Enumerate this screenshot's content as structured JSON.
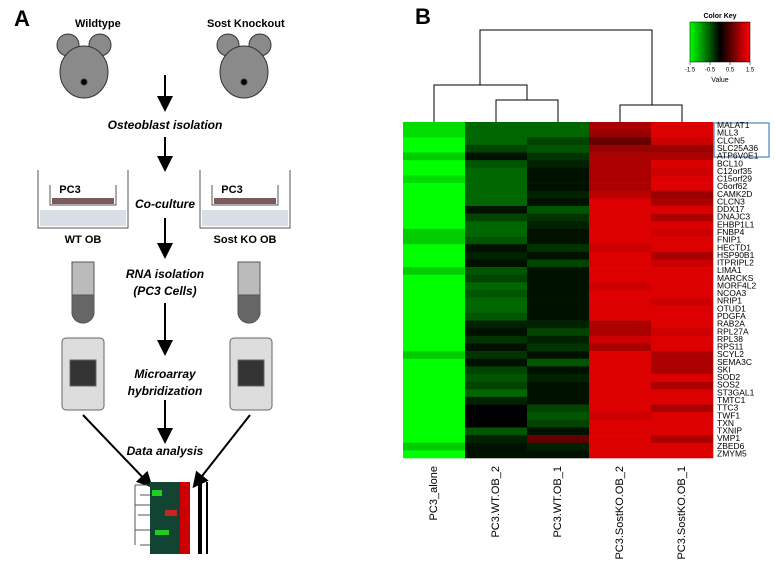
{
  "panel_labels": [
    "A",
    "B"
  ],
  "workflow": {
    "mouse_left": "Wildtype",
    "mouse_right": "Sost Knockout",
    "step1": "Osteoblast isolation",
    "step2": "Co-culture",
    "well_left_top": "PC3",
    "well_right_top": "PC3",
    "well_left_bottom": "WT OB",
    "well_right_bottom": "Sost KO OB",
    "step3_line1": "RNA isolation",
    "step3_line2": "(PC3 Cells)",
    "step4_line1": "Microarray",
    "step4_line2": "hybridization",
    "step5": "Data analysis"
  },
  "chart_data": {
    "type": "heatmap",
    "columns": [
      "PC3_alone",
      "PC3.WT.OB_2",
      "PC3.WT.OB_1",
      "PC3.SostKO.OB_2",
      "PC3.SostKO.OB_1"
    ],
    "rows": [
      "MALAT1",
      "MLL3",
      "CLCN5",
      "SLC25A36",
      "ATP6V0E1",
      "BCL10",
      "C12orf35",
      "C15orf29",
      "C6orf62",
      "CAMK2D",
      "CLCN3",
      "DDX17",
      "DNAJC3",
      "EHBP1L1",
      "FNBP4",
      "FNIP1",
      "HECTD1",
      "HSP90B1",
      "ITPRIPL2",
      "LIMA1",
      "MARCKS",
      "MORF4L2",
      "NCOA3",
      "NRIP1",
      "OTUD1",
      "PDGFA",
      "RAB2A",
      "RPL27A",
      "RPL38",
      "RPS11",
      "SCYL2",
      "SEMA3C",
      "SKI",
      "SOD2",
      "SOS2",
      "ST3GAL1",
      "TMTC1",
      "TTC3",
      "TWF1",
      "TXN",
      "TXNIP",
      "VMP1",
      "ZBED6",
      "ZMYM5"
    ],
    "values": [
      [
        -1.3,
        -0.6,
        -0.6,
        1.0,
        1.3
      ],
      [
        -1.3,
        -0.6,
        -0.6,
        0.9,
        1.3
      ],
      [
        -1.5,
        -0.6,
        -0.4,
        0.6,
        1.2
      ],
      [
        -1.5,
        -0.4,
        -0.5,
        0.9,
        0.9
      ],
      [
        -1.2,
        -0.1,
        -0.3,
        1.0,
        1.0
      ],
      [
        -1.5,
        -0.5,
        -0.2,
        1.0,
        1.3
      ],
      [
        -1.5,
        -0.6,
        -0.1,
        1.0,
        1.2
      ],
      [
        -1.3,
        -0.6,
        -0.1,
        1.0,
        1.3
      ],
      [
        -1.5,
        -0.6,
        -0.1,
        1.0,
        1.3
      ],
      [
        -1.5,
        -0.6,
        -0.2,
        1.1,
        0.9
      ],
      [
        -1.5,
        -0.6,
        -0.1,
        1.3,
        1.0
      ],
      [
        -1.5,
        -0.1,
        -0.5,
        1.3,
        1.3
      ],
      [
        -1.5,
        -0.4,
        -0.3,
        1.3,
        1.0
      ],
      [
        -1.5,
        -0.6,
        -0.2,
        1.3,
        1.3
      ],
      [
        -1.2,
        -0.6,
        -0.1,
        1.3,
        1.2
      ],
      [
        -1.2,
        -0.5,
        -0.1,
        1.3,
        1.3
      ],
      [
        -1.5,
        -0.1,
        -0.3,
        1.2,
        1.3
      ],
      [
        -1.5,
        -0.2,
        -0.1,
        1.3,
        1.0
      ],
      [
        -1.5,
        -0.1,
        -0.4,
        1.3,
        1.2
      ],
      [
        -1.2,
        -0.5,
        -0.1,
        1.3,
        1.3
      ],
      [
        -1.5,
        -0.4,
        -0.1,
        1.3,
        1.3
      ],
      [
        -1.5,
        -0.6,
        -0.1,
        1.2,
        1.3
      ],
      [
        -1.5,
        -0.5,
        -0.1,
        1.3,
        1.3
      ],
      [
        -1.5,
        -0.6,
        -0.1,
        1.3,
        1.2
      ],
      [
        -1.5,
        -0.6,
        -0.1,
        1.3,
        1.3
      ],
      [
        -1.5,
        -0.5,
        -0.1,
        1.3,
        1.3
      ],
      [
        -1.5,
        -0.2,
        -0.2,
        1.0,
        1.3
      ],
      [
        -1.5,
        -0.1,
        -0.4,
        1.0,
        1.2
      ],
      [
        -1.5,
        -0.3,
        -0.2,
        1.2,
        1.3
      ],
      [
        -1.5,
        -0.1,
        -0.3,
        1.0,
        1.3
      ],
      [
        -1.2,
        -0.3,
        -0.1,
        1.3,
        1.0
      ],
      [
        -1.5,
        -0.1,
        -0.5,
        1.3,
        1.0
      ],
      [
        -1.5,
        -0.4,
        -0.1,
        1.3,
        1.0
      ],
      [
        -1.5,
        -0.5,
        -0.2,
        1.3,
        1.3
      ],
      [
        -1.5,
        -0.4,
        -0.1,
        1.3,
        1.0
      ],
      [
        -1.5,
        -0.6,
        -0.1,
        1.3,
        1.3
      ],
      [
        -1.5,
        -0.2,
        -0.1,
        1.3,
        1.3
      ],
      [
        -1.5,
        0,
        -0.4,
        1.3,
        1.0
      ],
      [
        -1.5,
        0,
        -0.5,
        1.2,
        1.3
      ],
      [
        -1.5,
        0,
        -0.4,
        1.3,
        1.3
      ],
      [
        -1.5,
        -0.5,
        -0.1,
        1.3,
        1.3
      ],
      [
        -1.5,
        -0.2,
        0.6,
        1.3,
        1.0
      ],
      [
        -1.2,
        -0.1,
        -0.2,
        1.3,
        1.3
      ],
      [
        -1.5,
        -0.1,
        -0.1,
        1.3,
        1.3
      ]
    ],
    "zlim": [
      -1.5,
      1.5
    ],
    "colors": {
      "low": "#00ff00",
      "mid": "#000000",
      "high": "#ff0000"
    },
    "color_key": {
      "title": "Color Key",
      "label": "Value",
      "ticks": [
        -1.5,
        -0.5,
        0.5,
        1.5
      ]
    }
  }
}
